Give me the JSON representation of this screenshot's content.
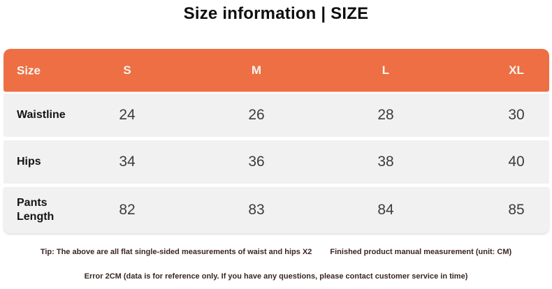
{
  "chart_data": {
    "type": "table",
    "title": "Size information | SIZE",
    "unit": "CM",
    "columns": [
      "Size",
      "S",
      "M",
      "L",
      "XL"
    ],
    "rows": [
      [
        "Waistline",
        "24",
        "26",
        "28",
        "30"
      ],
      [
        "Hips",
        "34",
        "36",
        "38",
        "40"
      ],
      [
        "Pants Length",
        "82",
        "83",
        "84",
        "85"
      ]
    ]
  },
  "notes": {
    "tip_left": "Tip: The above are all flat single-sided measurements of waist and hips X2",
    "tip_right": "Finished product manual measurement (unit: CM)",
    "error_line": "Error 2CM (data is for reference only. If you have any questions, please contact customer service in time)"
  },
  "colors": {
    "accent_orange": "#ED6F43",
    "row_background": "#F2F1F1",
    "header_text": "#FBF6F2",
    "value_text": "#3C3C3C",
    "note_text": "#3A2523"
  }
}
